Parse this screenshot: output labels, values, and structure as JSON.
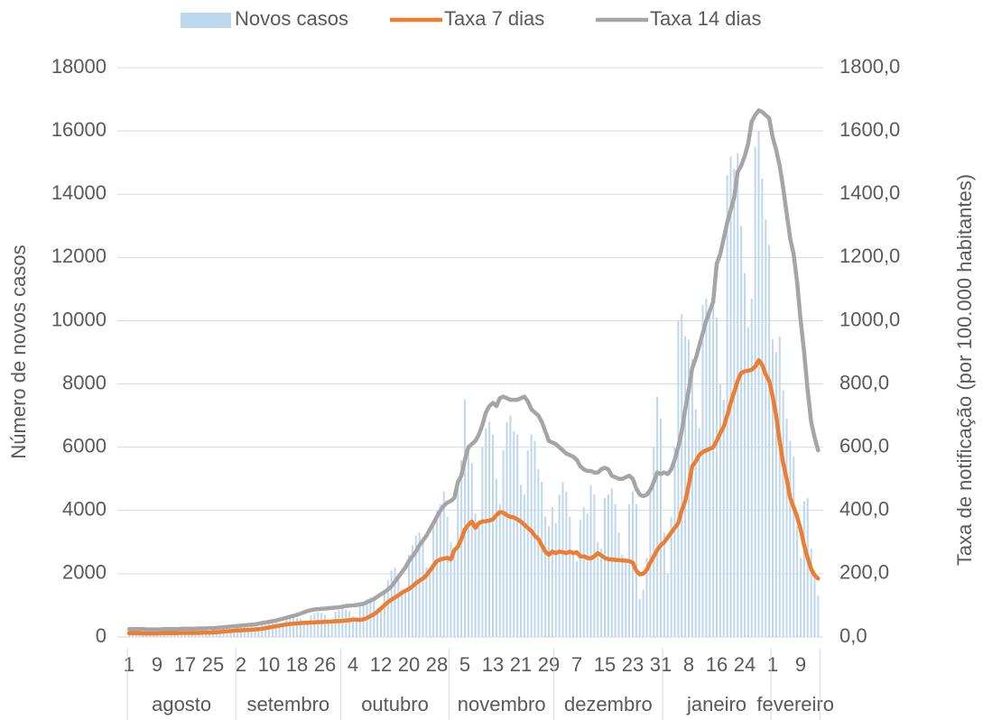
{
  "chart_data": {
    "type": "combo",
    "ylabel": "Número de novos casos",
    "y2label": "Taxa de notificação (por 100.000 habitantes)",
    "ylim": [
      0,
      18000
    ],
    "yticks": [
      0,
      2000,
      4000,
      6000,
      8000,
      10000,
      12000,
      14000,
      16000,
      18000
    ],
    "y2lim": [
      0,
      1800
    ],
    "y2ticks": [
      {
        "value": 0,
        "label": "0,0"
      },
      {
        "value": 200,
        "label": "200,0"
      },
      {
        "value": 400,
        "label": "400,0"
      },
      {
        "value": 600,
        "label": "600,0"
      },
      {
        "value": 800,
        "label": "800,0"
      },
      {
        "value": 1000,
        "label": "1000,0"
      },
      {
        "value": 1200,
        "label": "1200,0"
      },
      {
        "value": 1400,
        "label": "1400,0"
      },
      {
        "value": 1600,
        "label": "1600,0"
      },
      {
        "value": 1800,
        "label": "1800,0"
      }
    ],
    "grid": true,
    "legend": "top",
    "categories": [
      "1",
      null,
      null,
      null,
      null,
      null,
      null,
      null,
      "9",
      null,
      null,
      null,
      null,
      null,
      null,
      null,
      "17",
      null,
      null,
      null,
      null,
      null,
      null,
      null,
      "25",
      null,
      null,
      null,
      null,
      null,
      null,
      null,
      "2",
      null,
      null,
      null,
      null,
      null,
      null,
      null,
      "10",
      null,
      null,
      null,
      null,
      null,
      null,
      null,
      "18",
      null,
      null,
      null,
      null,
      null,
      null,
      null,
      "26",
      null,
      null,
      null,
      null,
      null,
      null,
      null,
      "4",
      null,
      null,
      null,
      null,
      null,
      null,
      null,
      "12",
      null,
      null,
      null,
      null,
      null,
      null,
      null,
      "20",
      null,
      null,
      null,
      null,
      null,
      null,
      null,
      "28",
      null,
      null,
      null,
      null,
      null,
      null,
      null,
      "5",
      null,
      null,
      null,
      null,
      null,
      null,
      null,
      "13",
      null,
      null,
      null,
      null,
      null,
      null,
      null,
      "21",
      null,
      null,
      null,
      null,
      null,
      null,
      null,
      "29",
      null,
      null,
      null,
      null,
      null,
      null,
      null,
      "7",
      null,
      null,
      null,
      null,
      null,
      null,
      null,
      "15",
      null,
      null,
      null,
      null,
      null,
      null,
      null,
      "23",
      null,
      null,
      null,
      null,
      null,
      null,
      null,
      "31",
      null,
      null,
      null,
      null,
      null,
      null,
      null,
      "8",
      null,
      null,
      null,
      null,
      null,
      null,
      null,
      "16",
      null,
      null,
      null,
      null,
      null,
      null,
      null,
      "24",
      null,
      null,
      null,
      null,
      null,
      null,
      null,
      "1",
      null,
      null,
      null,
      null,
      null,
      null,
      null,
      "9",
      null,
      null,
      null,
      null,
      null
    ],
    "month_groups": [
      {
        "label": "agosto",
        "days": 31
      },
      {
        "label": "setembro",
        "days": 30
      },
      {
        "label": "outubro",
        "days": 31
      },
      {
        "label": "novembro",
        "days": 30
      },
      {
        "label": "dezembro",
        "days": 31
      },
      {
        "label": "janeiro",
        "days": 31
      },
      {
        "label": "fevereiro",
        "days": 14
      }
    ],
    "series": [
      {
        "name": "Novos casos",
        "type": "bar",
        "color": "#bdd7ee",
        "values": [
          250,
          200,
          180,
          270,
          280,
          260,
          240,
          230,
          190,
          150,
          260,
          290,
          280,
          270,
          250,
          200,
          170,
          290,
          300,
          290,
          280,
          260,
          210,
          190,
          310,
          330,
          320,
          300,
          290,
          240,
          220,
          350,
          400,
          420,
          400,
          380,
          320,
          300,
          450,
          500,
          520,
          500,
          480,
          380,
          350,
          560,
          620,
          650,
          600,
          580,
          450,
          400,
          680,
          750,
          780,
          760,
          700,
          550,
          500,
          800,
          850,
          900,
          880,
          820,
          650,
          600,
          1000,
          1100,
          1200,
          1250,
          1200,
          900,
          850,
          1500,
          1800,
          2100,
          2200,
          2000,
          1500,
          1400,
          2600,
          2900,
          3200,
          3300,
          3000,
          2200,
          2000,
          3600,
          4000,
          4200,
          4600,
          3800,
          3000,
          2800,
          4800,
          5600,
          7500,
          6000,
          5500,
          3900,
          3600,
          6000,
          6600,
          6800,
          6400,
          5000,
          4200,
          5900,
          6800,
          7000,
          6500,
          6400,
          4800,
          4500,
          5900,
          6400,
          6200,
          5300,
          4900,
          3800,
          3500,
          4100,
          3600,
          4500,
          4900,
          4600,
          3800,
          2600,
          2400,
          3700,
          4100,
          3900,
          4800,
          4500,
          3000,
          2800,
          4400,
          4500,
          4700,
          4200,
          3300,
          2600,
          2400,
          4200,
          4600,
          4200,
          1200,
          1500,
          2500,
          4700,
          6000,
          7600,
          6900,
          3300,
          2000,
          3800,
          6000,
          10000,
          10200,
          9500,
          9400,
          8800,
          7200,
          6600,
          10500,
          10700,
          10400,
          10800,
          10100,
          8000,
          7500,
          14600,
          15200,
          14800,
          15300,
          13000,
          11500,
          9800,
          10700,
          15500,
          16000,
          14500,
          13200,
          12400,
          9400,
          9000,
          9500,
          7800,
          6900,
          6200,
          5700,
          3500,
          2500,
          4300,
          4400,
          2800,
          2000,
          1300
        ]
      },
      {
        "name": "Taxa 7 dias",
        "type": "line",
        "axis": "y2",
        "color": "#ed7d31",
        "values": [
          12,
          12,
          12,
          12,
          11,
          11,
          11,
          11,
          11,
          12,
          12,
          12,
          12,
          12,
          12,
          13,
          13,
          13,
          13,
          13,
          13,
          14,
          14,
          14,
          15,
          15,
          16,
          17,
          18,
          19,
          20,
          21,
          21,
          22,
          22,
          23,
          24,
          25,
          26,
          28,
          30,
          32,
          34,
          36,
          38,
          40,
          41,
          42,
          43,
          44,
          45,
          45,
          46,
          46,
          47,
          47,
          48,
          48,
          49,
          50,
          50,
          51,
          52,
          53,
          55,
          55,
          54,
          56,
          60,
          66,
          72,
          80,
          90,
          100,
          110,
          118,
          125,
          132,
          140,
          146,
          152,
          160,
          170,
          178,
          185,
          195,
          210,
          225,
          240,
          245,
          248,
          250,
          245,
          275,
          285,
          310,
          340,
          355,
          365,
          345,
          360,
          365,
          366,
          368,
          372,
          385,
          395,
          393,
          385,
          380,
          378,
          372,
          365,
          355,
          345,
          335,
          320,
          310,
          290,
          270,
          260,
          270,
          265,
          270,
          268,
          265,
          270,
          265,
          268,
          255,
          255,
          250,
          248,
          255,
          265,
          258,
          250,
          246,
          245,
          244,
          243,
          242,
          241,
          240,
          235,
          210,
          198,
          200,
          212,
          235,
          255,
          275,
          290,
          300,
          315,
          330,
          345,
          360,
          400,
          430,
          480,
          540,
          555,
          575,
          585,
          590,
          595,
          600,
          620,
          645,
          665,
          700,
          740,
          775,
          810,
          835,
          840,
          842,
          845,
          855,
          875,
          860,
          830,
          810,
          760,
          700,
          620,
          550,
          500,
          440,
          410,
          380,
          340,
          290,
          250,
          215,
          195,
          185
        ]
      },
      {
        "name": "Taxa 14 dias",
        "type": "line",
        "axis": "y2",
        "color": "#a5a5a5",
        "values": [
          25,
          25,
          25,
          25,
          25,
          24,
          24,
          24,
          24,
          24,
          25,
          25,
          25,
          25,
          25,
          26,
          26,
          26,
          26,
          26,
          27,
          27,
          27,
          28,
          28,
          29,
          30,
          31,
          32,
          33,
          34,
          35,
          36,
          37,
          38,
          39,
          40,
          42,
          44,
          46,
          48,
          50,
          52,
          55,
          58,
          61,
          64,
          67,
          70,
          74,
          78,
          82,
          85,
          87,
          88,
          89,
          90,
          91,
          92,
          93,
          94,
          96,
          98,
          99,
          100,
          101,
          103,
          105,
          110,
          115,
          120,
          128,
          135,
          142,
          150,
          160,
          175,
          190,
          205,
          220,
          240,
          255,
          270,
          290,
          305,
          320,
          340,
          360,
          380,
          400,
          415,
          425,
          430,
          440,
          490,
          510,
          560,
          600,
          610,
          620,
          640,
          670,
          710,
          730,
          740,
          730,
          755,
          760,
          755,
          750,
          750,
          750,
          755,
          760,
          745,
          720,
          710,
          700,
          680,
          650,
          620,
          615,
          610,
          600,
          590,
          580,
          575,
          570,
          560,
          540,
          530,
          525,
          525,
          520,
          520,
          530,
          535,
          530,
          510,
          505,
          500,
          500,
          505,
          510,
          500,
          470,
          450,
          445,
          450,
          465,
          490,
          520,
          515,
          520,
          515,
          530,
          560,
          600,
          650,
          720,
          780,
          850,
          880,
          920,
          960,
          1000,
          1030,
          1060,
          1180,
          1210,
          1260,
          1310,
          1350,
          1390,
          1470,
          1490,
          1520,
          1560,
          1630,
          1650,
          1665,
          1660,
          1650,
          1640,
          1580,
          1540,
          1490,
          1420,
          1340,
          1260,
          1210,
          1120,
          1000,
          900,
          780,
          680,
          630,
          590
        ]
      }
    ]
  }
}
